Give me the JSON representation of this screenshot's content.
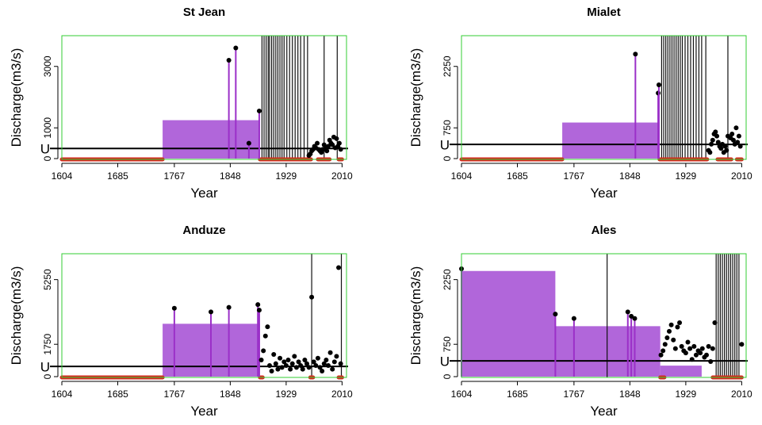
{
  "chart_data": [
    {
      "type": "scatter",
      "title": "St Jean",
      "xlabel": "Year",
      "ylabel": "Discharge(m3/s)",
      "xlim": [
        1604,
        2013
      ],
      "ylim": [
        0,
        4000
      ],
      "xticks": [
        1604,
        1685,
        1767,
        1848,
        1929,
        2010
      ],
      "yticks": [
        0,
        1000,
        3000
      ],
      "threshold": {
        "value": 330,
        "label": "U"
      },
      "blocks": [
        {
          "x": [
            1750,
            1891
          ],
          "value": 1250
        }
      ],
      "censored": [
        [
          1604,
          1750
        ],
        [
          1891,
          1965
        ],
        [
          1975,
          1992
        ],
        [
          2005,
          2010
        ]
      ],
      "vlines": [
        1894,
        1897,
        1900,
        1903,
        1905,
        1908,
        1911,
        1914,
        1917,
        1920,
        1923,
        1926,
        1930,
        1934,
        1938,
        1942,
        1946,
        1950,
        1955,
        1960,
        1984,
        2003
      ],
      "historical": {
        "x": [
          1846,
          1856,
          1875,
          1890
        ],
        "values": [
          3200,
          3600,
          500,
          1550
        ]
      },
      "x": [
        1962,
        1964,
        1966,
        1968,
        1970,
        1972,
        1974,
        1976,
        1978,
        1980,
        1982,
        1984,
        1986,
        1988,
        1990,
        1992,
        1994,
        1996,
        1998,
        2000,
        2002,
        2004,
        2006,
        2008
      ],
      "values": [
        100,
        150,
        250,
        300,
        400,
        350,
        500,
        300,
        250,
        200,
        300,
        450,
        350,
        250,
        400,
        600,
        500,
        450,
        700,
        350,
        650,
        400,
        500,
        300
      ]
    },
    {
      "type": "scatter",
      "title": "Mialet",
      "xlabel": "Year",
      "ylabel": "Discharge(m3/s)",
      "xlim": [
        1604,
        2013
      ],
      "ylim": [
        0,
        3000
      ],
      "xticks": [
        1604,
        1685,
        1767,
        1848,
        1929,
        2010
      ],
      "yticks": [
        0,
        750,
        2250
      ],
      "threshold": {
        "value": 346,
        "label": "U"
      },
      "blocks": [
        {
          "x": [
            1750,
            1891
          ],
          "value": 880
        }
      ],
      "censored": [
        [
          1604,
          1750
        ],
        [
          1891,
          1960
        ],
        [
          1975,
          1995
        ],
        [
          2003,
          2010
        ]
      ],
      "vlines": [
        1894,
        1897,
        1900,
        1903,
        1906,
        1909,
        1912,
        1915,
        1918,
        1921,
        1924,
        1928,
        1932,
        1936,
        1940,
        1944,
        1948,
        1952,
        1958,
        1990
      ],
      "historical": {
        "x": [
          1856,
          1889,
          1890
        ],
        "values": [
          2550,
          1600,
          1800
        ]
      },
      "x": [
        1962,
        1964,
        1966,
        1968,
        1970,
        1972,
        1974,
        1976,
        1978,
        1980,
        1982,
        1984,
        1986,
        1988,
        1990,
        1994,
        1996,
        1998,
        2000,
        2002,
        2004,
        2006,
        2008
      ],
      "values": [
        200,
        150,
        350,
        450,
        600,
        650,
        550,
        400,
        300,
        250,
        350,
        150,
        300,
        200,
        550,
        500,
        600,
        450,
        350,
        750,
        400,
        550,
        300
      ]
    },
    {
      "type": "scatter",
      "title": "Anduze",
      "xlabel": "Year",
      "ylabel": "Discharge(m3/s)",
      "xlim": [
        1604,
        2013
      ],
      "ylim": [
        0,
        6650
      ],
      "xticks": [
        1604,
        1685,
        1767,
        1848,
        1929,
        2010
      ],
      "yticks": [
        0,
        1750,
        5250
      ],
      "threshold": {
        "value": 555,
        "label": "U"
      },
      "blocks": [
        {
          "x": [
            1750,
            1891
          ],
          "value": 2860
        }
      ],
      "censored": [
        [
          1604,
          1750
        ],
        [
          1891,
          1895
        ],
        [
          1964,
          1968
        ],
        [
          2005,
          2010
        ]
      ],
      "vlines": [
        1966,
        2009
      ],
      "historical": {
        "x": [
          1767,
          1820,
          1846,
          1888,
          1890
        ],
        "values": [
          3700,
          3500,
          3750,
          3900,
          3600
        ]
      },
      "x": [
        1893,
        1896,
        1899,
        1902,
        1905,
        1908,
        1911,
        1914,
        1917,
        1920,
        1923,
        1926,
        1929,
        1932,
        1935,
        1938,
        1941,
        1944,
        1947,
        1950,
        1953,
        1956,
        1959,
        1962,
        1966,
        1969,
        1972,
        1975,
        1978,
        1981,
        1984,
        1987,
        1990,
        1993,
        1996,
        1999,
        2002,
        2005,
        2008
      ],
      "values": [
        900,
        1400,
        2200,
        2700,
        600,
        300,
        1200,
        700,
        400,
        1000,
        500,
        800,
        600,
        900,
        400,
        700,
        1100,
        500,
        800,
        600,
        400,
        900,
        700,
        500,
        4300,
        800,
        600,
        1000,
        500,
        300,
        700,
        900,
        600,
        1300,
        400,
        800,
        1100,
        5900,
        700
      ]
    },
    {
      "type": "scatter",
      "title": "Ales",
      "xlabel": "Year",
      "ylabel": "Discharge(m3/s)",
      "xlim": [
        1604,
        2013
      ],
      "ylim": [
        0,
        2850
      ],
      "xticks": [
        1604,
        1685,
        1767,
        1848,
        1929,
        2010
      ],
      "yticks": [
        0,
        750,
        2250
      ],
      "threshold": {
        "value": 366,
        "label": "U"
      },
      "blocks": [
        {
          "x": [
            1604,
            1740
          ],
          "value": 2450
        },
        {
          "x": [
            1740,
            1892
          ],
          "value": 1170
        },
        {
          "x": [
            1892,
            1952
          ],
          "value": 255
        }
      ],
      "censored": [
        [
          1892,
          1898
        ],
        [
          1968,
          2010
        ]
      ],
      "vlines": [
        1815,
        1973,
        1976,
        1979,
        1982,
        1985,
        1988,
        1991,
        1994,
        1997,
        2000,
        2003,
        2006
      ],
      "historical": {
        "x": [
          1604,
          1740,
          1767,
          1845,
          1850,
          1855
        ],
        "values": [
          2500,
          1450,
          1350,
          1500,
          1400,
          1350
        ]
      },
      "x": [
        1893,
        1896,
        1899,
        1902,
        1905,
        1908,
        1911,
        1914,
        1917,
        1920,
        1923,
        1926,
        1929,
        1932,
        1935,
        1938,
        1941,
        1944,
        1947,
        1950,
        1953,
        1956,
        1959,
        1962,
        1965,
        1968,
        1971,
        2010
      ],
      "values": [
        500,
        600,
        750,
        900,
        1050,
        1200,
        850,
        650,
        1150,
        1250,
        700,
        600,
        550,
        800,
        650,
        400,
        700,
        500,
        600,
        550,
        650,
        450,
        500,
        700,
        350,
        650,
        1250,
        750
      ]
    }
  ]
}
